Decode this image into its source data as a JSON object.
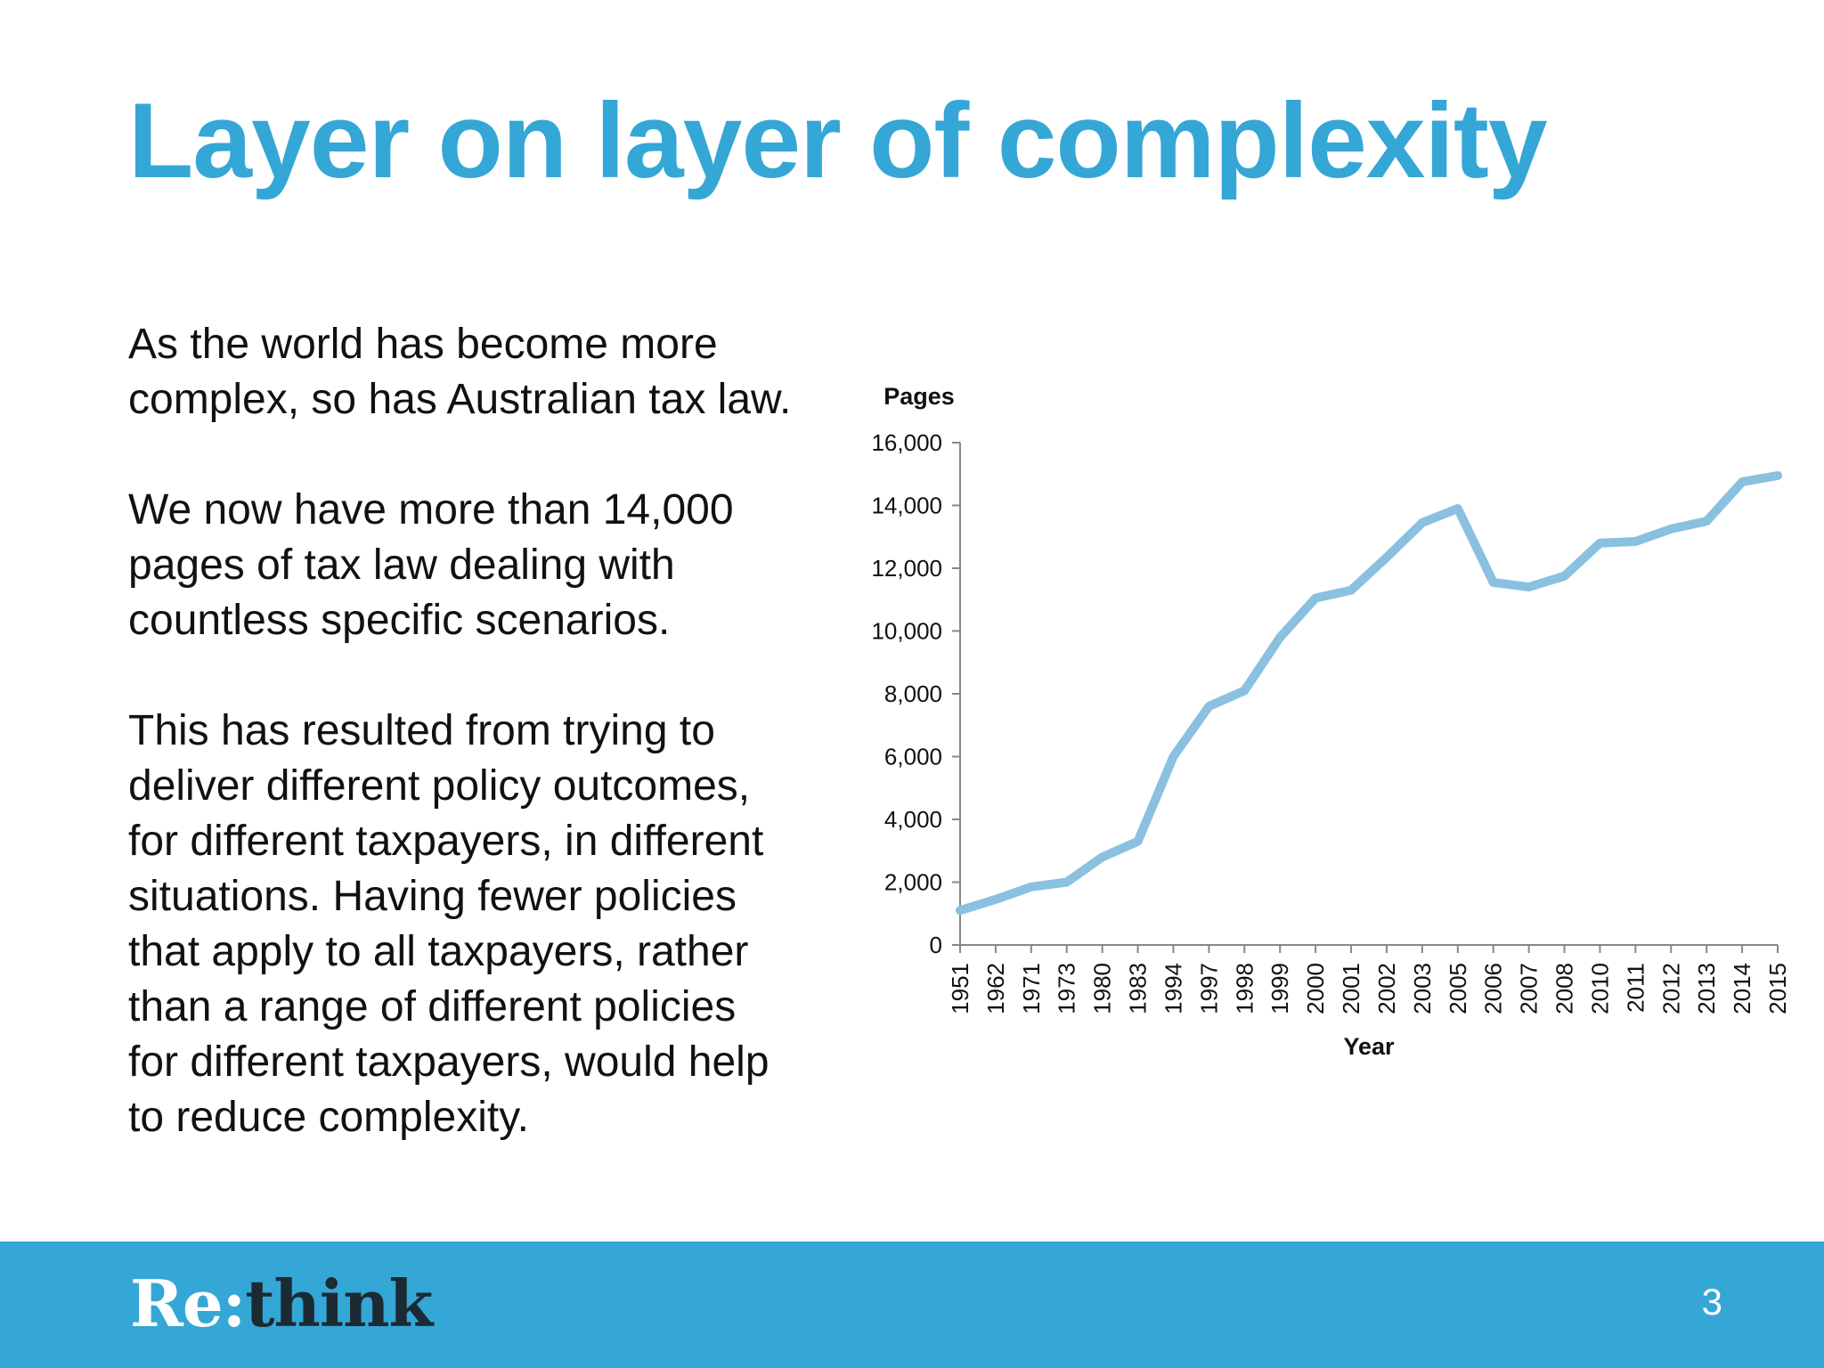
{
  "slide": {
    "title": "Layer on layer of complexity",
    "paragraphs": [
      "As the world has become more\ncomplex, so has Australian tax law.",
      "We now have more than 14,000\npages of tax law dealing with\ncountless specific scenarios.",
      "This has resulted from trying to\ndeliver different policy outcomes,\nfor different taxpayers, in different\nsituations.  Having fewer policies\nthat apply to all taxpayers, rather\nthan a range of different policies\nfor different taxpayers, would help\nto reduce complexity."
    ],
    "page_number": "3"
  },
  "footer": {
    "logo_part1": "Re:",
    "logo_part2": "think",
    "background_color": "#34a7d6"
  },
  "colors": {
    "title": "#34a7d6",
    "line": "#8ac0e0",
    "axis": "#888888",
    "text": "#111111"
  },
  "chart_data": {
    "type": "line",
    "title": "",
    "xlabel": "Year",
    "ylabel": "Pages",
    "categories": [
      "1951",
      "1962",
      "1971",
      "1973",
      "1980",
      "1983",
      "1994",
      "1997",
      "1998",
      "1999",
      "2000",
      "2001",
      "2002",
      "2003",
      "2005",
      "2006",
      "2007",
      "2008",
      "2010",
      "2011",
      "2012",
      "2013",
      "2014",
      "2015"
    ],
    "values": [
      1100,
      1450,
      1850,
      2000,
      2800,
      3300,
      6000,
      7600,
      8100,
      9800,
      11050,
      11300,
      12350,
      13450,
      13900,
      11550,
      11400,
      11750,
      12800,
      12850,
      13250,
      13500,
      14750,
      14950
    ],
    "ylim": [
      0,
      16000
    ],
    "yticks": [
      0,
      2000,
      4000,
      6000,
      8000,
      10000,
      12000,
      14000,
      16000
    ],
    "ytick_labels": [
      "0",
      "2,000",
      "4,000",
      "6,000",
      "8,000",
      "10,000",
      "12,000",
      "14,000",
      "16,000"
    ],
    "grid": false,
    "legend": "none"
  }
}
